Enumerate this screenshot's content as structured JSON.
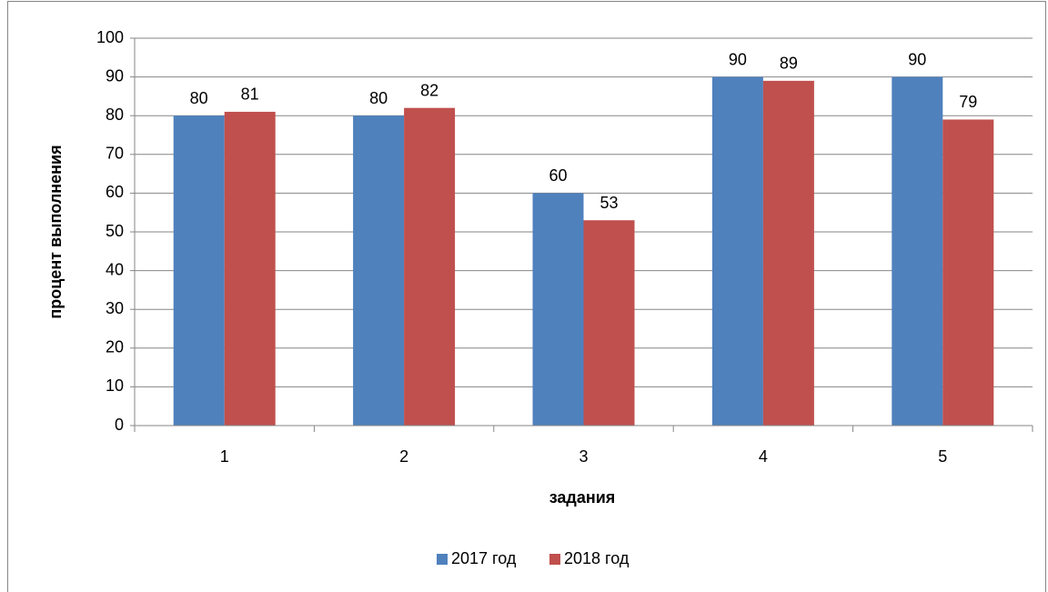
{
  "chart_data": {
    "type": "bar",
    "categories": [
      "1",
      "2",
      "3",
      "4",
      "5"
    ],
    "series": [
      {
        "name": "2017 год",
        "color": "#4f81bd",
        "values": [
          80,
          80,
          60,
          90,
          90
        ]
      },
      {
        "name": "2018 год",
        "color": "#c0504d",
        "values": [
          81,
          82,
          53,
          89,
          79
        ]
      }
    ],
    "x_label": "задания",
    "y_label": "процент выполнения",
    "ylim": [
      0,
      100
    ],
    "yticks": [
      0,
      10,
      20,
      30,
      40,
      50,
      60,
      70,
      80,
      90,
      100
    ],
    "grid": true,
    "legend": "bottom"
  }
}
